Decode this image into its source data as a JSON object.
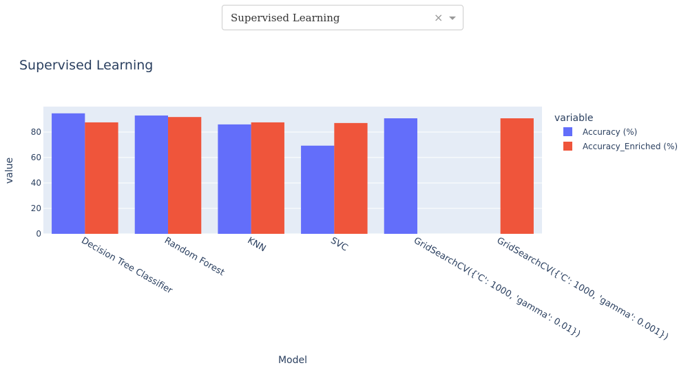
{
  "dropdown": {
    "selected": "Supervised Learning"
  },
  "chart_data": {
    "type": "bar",
    "title": "Supervised Learning",
    "xlabel": "Model",
    "ylabel": "value",
    "ylim": [
      0,
      100
    ],
    "yticks": [
      0,
      20,
      40,
      60,
      80
    ],
    "grid": true,
    "legend_title": "variable",
    "legend_position": "right",
    "categories": [
      "Decision Tree Classifier",
      "Random Forest",
      "KNN",
      "SVC",
      "GridSearchCV({'C': 1000, 'gamma': 0.01})",
      "GridSearchCV({'C': 1000, 'gamma': 0.001})"
    ],
    "series": [
      {
        "name": "Accuracy (%)",
        "color": "#636efa",
        "values": [
          94.7,
          93.0,
          86.0,
          69.3,
          90.8,
          null
        ]
      },
      {
        "name": "Accuracy_Enriched (%)",
        "color": "#ef553b",
        "values": [
          87.6,
          91.8,
          87.6,
          87.1,
          null,
          90.8
        ]
      }
    ]
  }
}
